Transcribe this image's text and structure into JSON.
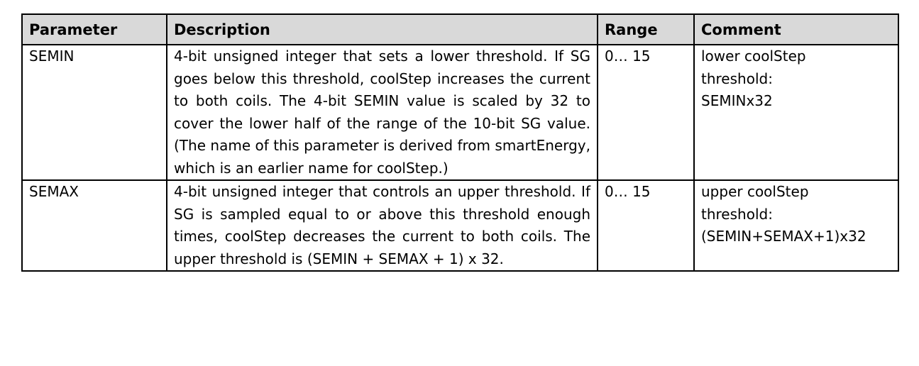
{
  "table": {
    "headers": [
      "Parameter",
      "Description",
      "Range",
      "Comment"
    ],
    "rows": [
      {
        "parameter": "SEMIN",
        "description": "4-bit unsigned integer that sets a lower threshold. If SG goes below this threshold, coolStep increases the current to both coils. The 4-bit SEMIN value is scaled by 32 to cover the lower half of the range of the 10-bit SG value. (The name of this parameter is derived from smartEnergy, which is an earlier name for coolStep.)",
        "range": "0… 15",
        "comment": "lower coolStep\nthreshold:\nSEMINx32"
      },
      {
        "parameter": "SEMAX",
        "description": "4-bit unsigned integer that controls an upper threshold. If SG is sampled equal to or above this threshold enough times, coolStep decreases the current to both coils. The upper threshold is (SEMIN + SEMAX + 1) x 32.",
        "range": "0… 15",
        "comment": "upper coolStep\nthreshold:\n(SEMIN+SEMAX+1)x32"
      }
    ]
  },
  "colors": {
    "header_bg": "#d9d9d9",
    "border": "#000000",
    "text": "#000000"
  }
}
